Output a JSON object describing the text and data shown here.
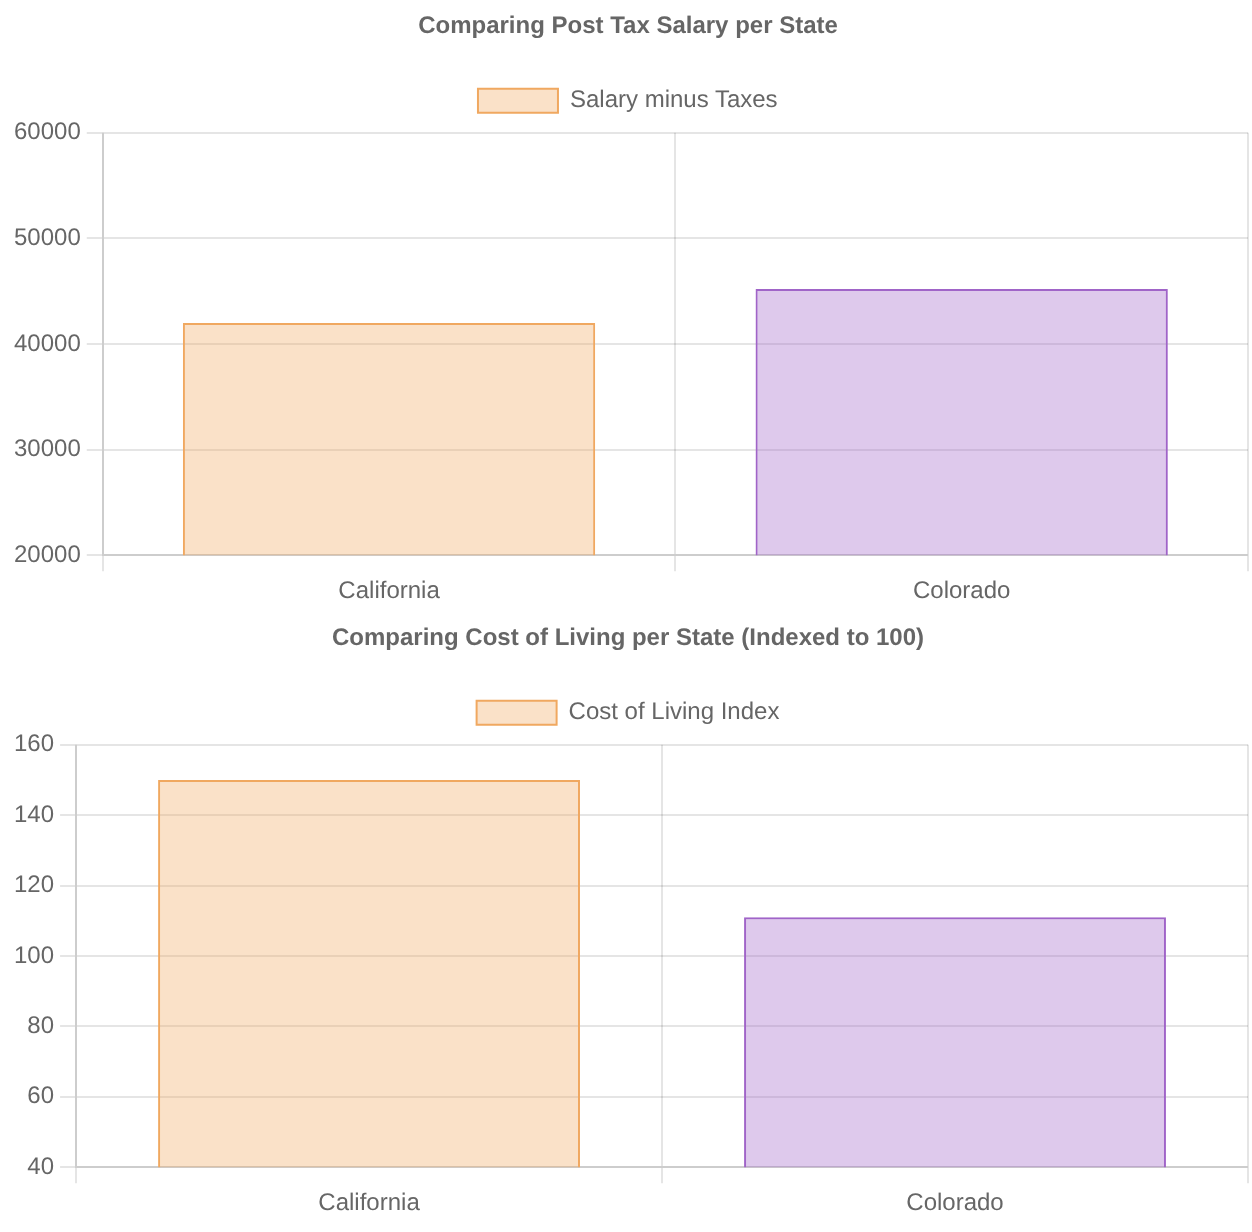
{
  "chart_data": [
    {
      "type": "bar",
      "title": "Comparing Post Tax Salary per State",
      "categories": [
        "California",
        "Colorado"
      ],
      "series": [
        {
          "name": "Salary minus Taxes",
          "colors": [
            "#f0a860",
            "#a064c8"
          ],
          "values": [
            42000,
            45200
          ]
        }
      ],
      "ylim": [
        20000,
        60000
      ],
      "yticks": [
        20000,
        30000,
        40000,
        50000,
        60000
      ],
      "grid": true,
      "legend": "top"
    },
    {
      "type": "bar",
      "title": "Comparing Cost of Living per State (Indexed to 100)",
      "categories": [
        "California",
        "Colorado"
      ],
      "series": [
        {
          "name": "Cost of Living Index",
          "colors": [
            "#f0a860",
            "#a064c8"
          ],
          "values": [
            150,
            111
          ]
        }
      ],
      "ylim": [
        40,
        160
      ],
      "yticks": [
        40,
        60,
        80,
        100,
        120,
        140,
        160
      ],
      "grid": true,
      "legend": "top"
    }
  ]
}
